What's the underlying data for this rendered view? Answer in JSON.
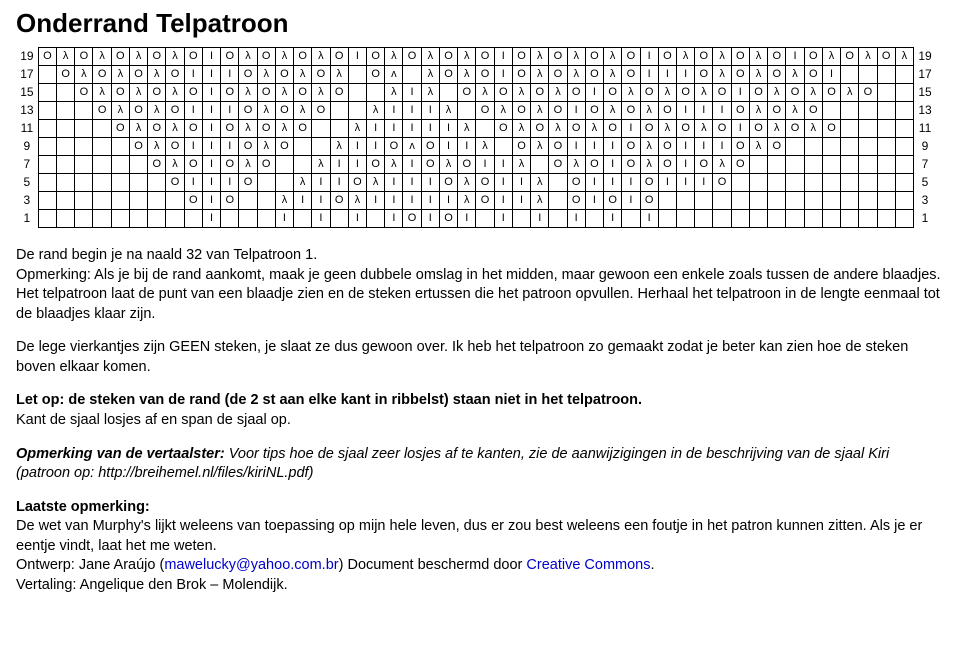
{
  "title": "Onderrand Telpatroon",
  "chart": {
    "cols": 48,
    "row_numbers": [
      19,
      17,
      15,
      13,
      11,
      9,
      7,
      5,
      3,
      1
    ],
    "cell_fontsize": 11,
    "border_color": "#000000",
    "background_color": "#ffffff",
    "rows": [
      [
        "O",
        "λ",
        "O",
        "λ",
        "O",
        "λ",
        "O",
        "λ",
        "O",
        "I",
        "O",
        "λ",
        "O",
        "λ",
        "O",
        "λ",
        "O",
        "I",
        "O",
        "λ",
        "O",
        "λ",
        "O",
        "λ",
        "O",
        "I",
        "O",
        "λ",
        "O",
        "λ",
        "O",
        "λ",
        "O",
        "I",
        "O",
        "λ",
        "O",
        "λ",
        "O",
        "λ",
        "O",
        "I",
        "O",
        "λ",
        "O",
        "λ",
        "O",
        "λ"
      ],
      [
        "",
        "O",
        "λ",
        "O",
        "λ",
        "O",
        "λ",
        "O",
        "I",
        "I",
        "I",
        "O",
        "λ",
        "O",
        "λ",
        "O",
        "λ",
        "",
        "O",
        "ᴧ",
        "",
        "λ",
        "O",
        "λ",
        "O",
        "I",
        "O",
        "λ",
        "O",
        "λ",
        "O",
        "λ",
        "O",
        "I",
        "I",
        "I",
        "O",
        "λ",
        "O",
        "λ",
        "O",
        "λ",
        "O",
        "I",
        "",
        "",
        "",
        ""
      ],
      [
        "",
        "",
        "O",
        "λ",
        "O",
        "λ",
        "O",
        "λ",
        "O",
        "I",
        "O",
        "λ",
        "O",
        "λ",
        "O",
        "λ",
        "O",
        "",
        "",
        "λ",
        "I",
        "λ",
        "",
        "O",
        "λ",
        "O",
        "λ",
        "O",
        "λ",
        "O",
        "I",
        "O",
        "λ",
        "O",
        "λ",
        "O",
        "λ",
        "O",
        "I",
        "O",
        "λ",
        "O",
        "λ",
        "O",
        "λ",
        "O",
        "",
        ""
      ],
      [
        "",
        "",
        "",
        "O",
        "λ",
        "O",
        "λ",
        "O",
        "I",
        "I",
        "I",
        "O",
        "λ",
        "O",
        "λ",
        "O",
        "",
        "",
        "λ",
        "I",
        "I",
        "I",
        "λ",
        "",
        "O",
        "λ",
        "O",
        "λ",
        "O",
        "I",
        "O",
        "λ",
        "O",
        "λ",
        "O",
        "I",
        "I",
        "I",
        "O",
        "λ",
        "O",
        "λ",
        "O",
        "",
        "",
        "",
        "",
        ""
      ],
      [
        "",
        "",
        "",
        "",
        "O",
        "λ",
        "O",
        "λ",
        "O",
        "I",
        "O",
        "λ",
        "O",
        "λ",
        "O",
        "",
        "",
        "λ",
        "I",
        "I",
        "I",
        "I",
        "I",
        "λ",
        "",
        "O",
        "λ",
        "O",
        "λ",
        "O",
        "λ",
        "O",
        "I",
        "O",
        "λ",
        "O",
        "λ",
        "O",
        "I",
        "O",
        "λ",
        "O",
        "λ",
        "O",
        "",
        "",
        "",
        ""
      ],
      [
        "",
        "",
        "",
        "",
        "",
        "O",
        "λ",
        "O",
        "I",
        "I",
        "I",
        "O",
        "λ",
        "O",
        "",
        "",
        "λ",
        "I",
        "I",
        "O",
        "ᴧ",
        "O",
        "I",
        "I",
        "λ",
        "",
        "O",
        "λ",
        "O",
        "I",
        "I",
        "I",
        "O",
        "λ",
        "O",
        "I",
        "I",
        "I",
        "O",
        "λ",
        "O",
        "",
        "",
        "",
        "",
        "",
        "",
        ""
      ],
      [
        "",
        "",
        "",
        "",
        "",
        "",
        "O",
        "λ",
        "O",
        "I",
        "O",
        "λ",
        "O",
        "",
        "",
        "λ",
        "I",
        "I",
        "O",
        "λ",
        "I",
        "O",
        "λ",
        "O",
        "I",
        "I",
        "λ",
        "",
        "O",
        "λ",
        "O",
        "I",
        "O",
        "λ",
        "O",
        "I",
        "O",
        "λ",
        "O",
        "",
        "",
        "",
        "",
        "",
        "",
        "",
        "",
        ""
      ],
      [
        "",
        "",
        "",
        "",
        "",
        "",
        "",
        "O",
        "I",
        "I",
        "I",
        "O",
        "",
        "",
        "λ",
        "I",
        "I",
        "O",
        "λ",
        "I",
        "I",
        "I",
        "O",
        "λ",
        "O",
        "I",
        "I",
        "λ",
        "",
        "O",
        "I",
        "I",
        "I",
        "O",
        "I",
        "I",
        "I",
        "O",
        "",
        "",
        "",
        "",
        "",
        "",
        "",
        "",
        "",
        ""
      ],
      [
        "",
        "",
        "",
        "",
        "",
        "",
        "",
        "",
        "O",
        "I",
        "O",
        "",
        "",
        "λ",
        "I",
        "I",
        "O",
        "λ",
        "I",
        "I",
        "I",
        "I",
        "I",
        "λ",
        "O",
        "I",
        "I",
        "λ",
        "",
        "O",
        "I",
        "O",
        "I",
        "O",
        "",
        "",
        "",
        "",
        "",
        "",
        "",
        "",
        "",
        "",
        "",
        "",
        "",
        ""
      ],
      [
        "",
        "",
        "",
        "",
        "",
        "",
        "",
        "",
        "",
        "I",
        "",
        "",
        "",
        "I",
        "",
        "I",
        "",
        "I",
        "",
        "I",
        "O",
        "I",
        "O",
        "I",
        "",
        "I",
        "",
        "I",
        "",
        "I",
        "",
        "I",
        "",
        "I",
        "",
        "",
        "",
        "",
        "",
        "",
        "",
        "",
        "",
        "",
        "",
        "",
        "",
        ""
      ]
    ]
  },
  "paragraphs": {
    "p1_a": "De rand begin je na naald 32 van Telpatroon 1.",
    "p1_b": "Opmerking: Als je bij de rand aankomt, maak je geen dubbele omslag in het midden, maar gewoon een enkele zoals tussen de andere blaadjes. Het telpatroon laat de punt van een blaadje zien en de steken ertussen die het patroon opvullen. Herhaal het telpatroon in de lengte eenmaal tot de blaadjes klaar zijn.",
    "p2": "De lege vierkantjes zijn GEEN steken, je slaat ze dus gewoon over. Ik heb het telpatroon zo gemaakt zodat je beter kan zien hoe de steken boven elkaar komen.",
    "p3_bold": "Let op: de steken van de rand (de 2 st aan elke kant in ribbelst) staan niet in het telpatroon.",
    "p3_rest": "Kant de sjaal losjes af en span de sjaal op.",
    "p4_label": "Opmerking van de vertaalster:",
    "p4_rest": " Voor tips hoe de sjaal zeer losjes af te kanten, zie de aanwijzigingen in de beschrijving van de sjaal Kiri (patroon op: http://breihemel.nl/files/kiriNL.pdf)",
    "p5_label": "Laatste opmerking:",
    "p5_rest": "De wet van Murphy's lijkt weleens van toepassing op mijn hele leven, dus er zou best weleens een foutje in het patron kunnen zitten. Als je er eentje vindt, laat het me weten.",
    "p5_design": "Ontwerp: Jane Araújo (",
    "p5_email": "mawelucky@yahoo.com.br",
    "p5_design2": ") Document beschermd door ",
    "p5_cc": "Creative Commons",
    "p5_design3": ".",
    "p5_trans": "Vertaling: Angelique den Brok – Molendijk."
  }
}
